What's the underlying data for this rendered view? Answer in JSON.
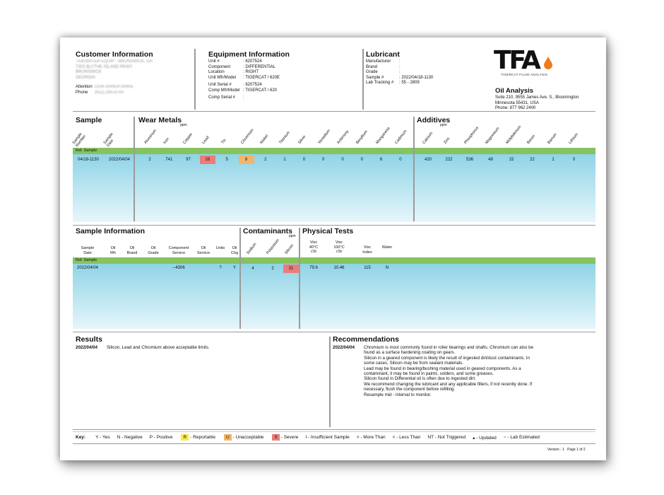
{
  "customer": {
    "title": "Customer Information",
    "lines": [
      "TIDEWATER EQUIP - BRUNSWICK, GA",
      "7303 BLYTHE ISLAND PKWY",
      "BRUNSWICK",
      "GEORGIA"
    ],
    "attention_label": "Attention",
    "attention_value": "DON OHNOFSHIRE",
    "phone_label": "Phone",
    "phone_value": "(912) 265-8700"
  },
  "equipment": {
    "title": "Equipment Information",
    "rows": [
      {
        "k": "Unit #",
        "v": ": 6207524"
      },
      {
        "k": "Component",
        "v": ": DIFFERENTIAL"
      },
      {
        "k": "Location",
        "v": ": RIGHT"
      },
      {
        "k": "Unit Mfr/Model",
        "v": ": TIGERCAT / 620E"
      },
      {
        "k": "Unit Serial #",
        "v": ": 6207524"
      },
      {
        "k": "Comp Mfr/Model",
        "v": ": TIGERCAT / 620"
      },
      {
        "k": "Comp Serial #",
        "v": ":"
      }
    ]
  },
  "lubricant": {
    "title": "Lubricant",
    "rows": [
      {
        "k": "Manufacturer",
        "v": ":"
      },
      {
        "k": "Brand",
        "v": ":"
      },
      {
        "k": "Grade",
        "v": ":"
      },
      {
        "k": "Sample #",
        "v": ": 2022/04/18-1130"
      },
      {
        "k": "Lab Tracking #",
        "v": ": 55 - 2809"
      }
    ]
  },
  "lab": {
    "logo": "TFA",
    "logo_sub": "TIGERCAT FLUID ANALYSIS",
    "title": "Oil Analysis",
    "addr1": "Suite 210, 9555 James Ave. S., Bloomington",
    "addr2": "Minnesota 55431, USA",
    "phone": "Phone: 877 962 2400"
  },
  "sample": {
    "title": "Sample",
    "cols": [
      "Sample Number",
      "Sample Date"
    ],
    "values": [
      "04/18-1130",
      "2022/04/04"
    ]
  },
  "wear_metals": {
    "title": "Wear Metals",
    "unit": "ppm",
    "cols": [
      "Aluminum",
      "Iron",
      "Copper",
      "Lead",
      "Tin",
      "Chromium",
      "Nickel",
      "Titanium",
      "Silver",
      "Vanadium",
      "Antimony",
      "Beryllium",
      "Manganese",
      "Cadmium"
    ],
    "values": [
      "2",
      "741",
      "97",
      "26",
      "5",
      "8",
      "2",
      "1",
      "0",
      "0",
      "0",
      "0",
      "6",
      "0"
    ]
  },
  "additives": {
    "title": "Additives",
    "unit": "ppm",
    "cols": [
      "Calcium",
      "Zinc",
      "Phosphorus",
      "Magnesium",
      "Molybdenum",
      "Boron",
      "Barium",
      "Lithium"
    ],
    "values": [
      "420",
      "222",
      "536",
      "48",
      "15",
      "22",
      "1",
      "0"
    ]
  },
  "ref_sample": "Ref. Sample",
  "sample_info": {
    "title": "Sample Information",
    "cols": [
      "Sample Date",
      "Oil Mh",
      "Oil Brand",
      "Oil Grade",
      "Component Service",
      "Oil Service",
      "Units",
      "Oil Chg"
    ],
    "values": [
      "2022/04/04",
      "",
      "",
      "",
      "--4306",
      "",
      "?",
      "Y"
    ]
  },
  "contaminants": {
    "title": "Contaminants",
    "unit": "ppm",
    "cols": [
      "Sodium",
      "Potassium",
      "Silicon"
    ],
    "values": [
      "4",
      "2",
      "31"
    ]
  },
  "physical": {
    "title": "Physical Tests",
    "cols": [
      "Visc 40°C cSt",
      "Visc 100°C cSt",
      "Visc Index",
      "Water"
    ],
    "values": [
      "79.6",
      "10.46",
      "115",
      "N"
    ]
  },
  "results": {
    "title": "Results",
    "date": "2022/04/04",
    "text": "Silicon, Lead and Chromium above acceptable limits."
  },
  "recommendations": {
    "title": "Recommendations",
    "date": "2022/04/04",
    "lines": [
      "Chromium is most commonly found in roller bearings and shafts. Chromium can also be",
      "found as a surface  hardening coating on gears.",
      "Silicon in a geared component is likely the result of ingested dirt/dust contaminants. In",
      "some cases, Silicon may be from sealant materials.",
      "Lead may be found in bearing/bushing material used in geared components. As a",
      "contaminant, it may be found in paints, solders, and some greases.",
      "Silicon found in Differential oil is often due to ingested dirt.",
      "We recommend changing the lubricant and any applicable filters, if not recently done. If",
      "necessary, flush the component before refilling.",
      "Resample mid - interval to monitor."
    ]
  },
  "key": {
    "label": "Key:",
    "y": "Y - Yes",
    "n": "N - Negative",
    "p": "P - Positive",
    "r_letter": "R",
    "r_text": "- Reportable",
    "u_letter": "U",
    "u_text": "- Unacceptable",
    "s_letter": "S",
    "s_text": "- Severe",
    "i": "I - Insufficient Sample",
    "gt": "> - More Than",
    "lt": "< - Less Than",
    "nt": "NT - Not Triggered",
    "upd": "▴ - Updated",
    "est": "~ - Lab Estimated"
  },
  "footer": {
    "version": "Version - 1",
    "page": "Page 1 of 2"
  },
  "colors": {
    "header_green": "#86c35f",
    "row_blue": "#8fd4e6",
    "severe": "#ee7b7b",
    "unacceptable": "#f3b56a",
    "reportable": "#f7ec47"
  }
}
